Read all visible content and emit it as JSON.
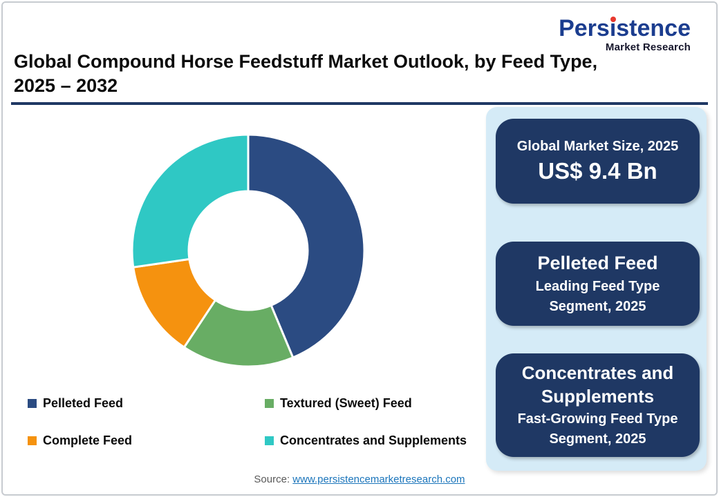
{
  "brand": {
    "name_pre": "Pers",
    "name_i": "i",
    "name_post": "stence",
    "tagline": "Market Research"
  },
  "header": {
    "title_line1": "Global Compound Horse Feedstuff Market Outlook, by Feed Type,",
    "title_line2": "2025 – 2032"
  },
  "chart_data": {
    "type": "pie",
    "subtype": "donut",
    "start_angle_deg": 0,
    "direction": "clockwise",
    "inner_radius_ratio": 0.512,
    "gap_color": "#ffffff",
    "legend_position": "bottom",
    "segments": [
      {
        "label": "Pelleted Feed",
        "value": 43.7,
        "color": "#2b4b82"
      },
      {
        "label": "Textured (Sweet) Feed",
        "value": 15.6,
        "color": "#68ad64"
      },
      {
        "label": "Complete Feed",
        "value": 13.4,
        "color": "#f5920f"
      },
      {
        "label": "Concentrates and Supplements",
        "value": 27.3,
        "color": "#2fc8c4"
      }
    ]
  },
  "panel": {
    "boxes": [
      {
        "line1": "Global Market Size, 2025",
        "line2": "US$ 9.4 Bn"
      },
      {
        "title": "Pelleted Feed",
        "subtitle_line1": "Leading Feed Type",
        "subtitle_line2": "Segment, 2025"
      },
      {
        "title_line1": "Concentrates and",
        "title_line2": "Supplements",
        "subtitle_line1": "Fast-Growing Feed Type",
        "subtitle_line2": "Segment, 2025"
      }
    ]
  },
  "source": {
    "label": "Source: ",
    "link_text": "www.persistencemarketresearch.com"
  },
  "colors": {
    "navy_box": "#1f3864",
    "panel_bg": "#d5ebf7",
    "divider": "#1f3864",
    "logo_blue": "#1b3d8f",
    "logo_dot_red": "#e8392f",
    "link_blue": "#1b75bb"
  }
}
